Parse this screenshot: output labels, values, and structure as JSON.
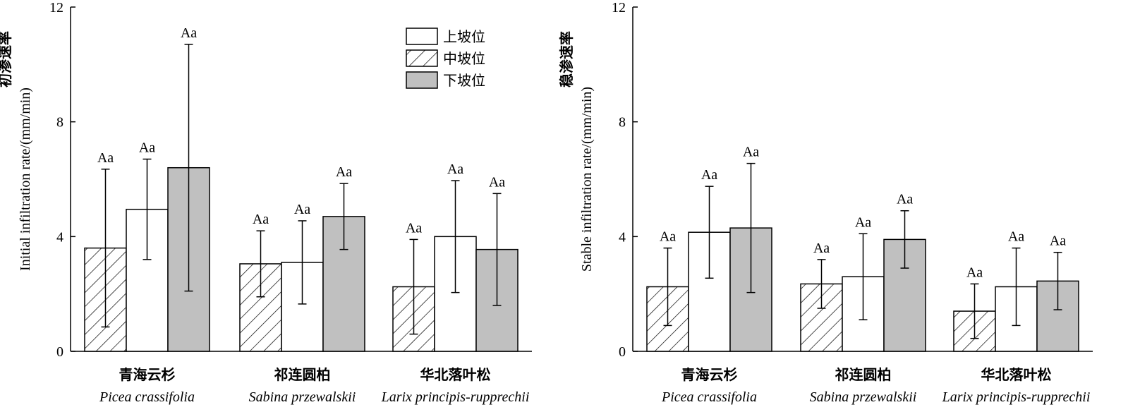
{
  "legend": {
    "entries": [
      {
        "label": "上坡位",
        "style": "white"
      },
      {
        "label": "中坡位",
        "style": "hatch"
      },
      {
        "label": "下坡位",
        "style": "gray"
      }
    ],
    "placement": "top-right of left panel"
  },
  "colors": {
    "white": "#ffffff",
    "gray": "#c0c0c0",
    "stroke": "#000000"
  },
  "chart_data": [
    {
      "type": "bar",
      "ylabel_cn": "初渗速率",
      "ylabel_en": "Initial infiltration rate/(mm/min)",
      "ylim": [
        0,
        12
      ],
      "yticks": [
        0,
        4,
        8,
        12
      ],
      "grid": false,
      "categories": [
        {
          "cn": "青海云杉",
          "latin": "Picea crassifolia"
        },
        {
          "cn": "祁连圆柏",
          "latin": "Sabina przewalskii"
        },
        {
          "cn": "华北落叶松",
          "latin": "Larix principis-rupprechii"
        }
      ],
      "series": [
        {
          "name": "中坡位",
          "style": "hatch",
          "values": [
            3.6,
            3.05,
            2.25
          ],
          "errors": [
            2.75,
            1.15,
            1.65
          ],
          "labels": [
            "Aa",
            "Aa",
            "Aa"
          ]
        },
        {
          "name": "上坡位",
          "style": "white",
          "values": [
            4.95,
            3.1,
            4.0
          ],
          "errors": [
            1.75,
            1.45,
            1.95
          ],
          "labels": [
            "Aa",
            "Aa",
            "Aa"
          ]
        },
        {
          "name": "下坡位",
          "style": "gray",
          "values": [
            6.4,
            4.7,
            3.55
          ],
          "errors": [
            4.3,
            1.15,
            1.95
          ],
          "labels": [
            "Aa",
            "Aa",
            "Aa"
          ]
        }
      ]
    },
    {
      "type": "bar",
      "ylabel_cn": "稳渗速率",
      "ylabel_en": "Stable infiltration rate/(mm/min)",
      "ylim": [
        0,
        12
      ],
      "yticks": [
        0,
        4,
        8,
        12
      ],
      "grid": false,
      "categories": [
        {
          "cn": "青海云杉",
          "latin": "Picea crassifolia"
        },
        {
          "cn": "祁连圆柏",
          "latin": "Sabina przewalskii"
        },
        {
          "cn": "华北落叶松",
          "latin": "Larix principis-rupprechii"
        }
      ],
      "series": [
        {
          "name": "中坡位",
          "style": "hatch",
          "values": [
            2.25,
            2.35,
            1.4
          ],
          "errors": [
            1.35,
            0.85,
            0.95
          ],
          "labels": [
            "Aa",
            "Aa",
            "Aa"
          ]
        },
        {
          "name": "上坡位",
          "style": "white",
          "values": [
            4.15,
            2.6,
            2.25
          ],
          "errors": [
            1.6,
            1.5,
            1.35
          ],
          "labels": [
            "Aa",
            "Aa",
            "Aa"
          ]
        },
        {
          "name": "下坡位",
          "style": "gray",
          "values": [
            4.3,
            3.9,
            2.45
          ],
          "errors": [
            2.25,
            1.0,
            1.0
          ],
          "labels": [
            "Aa",
            "Aa",
            "Aa"
          ]
        }
      ]
    }
  ]
}
